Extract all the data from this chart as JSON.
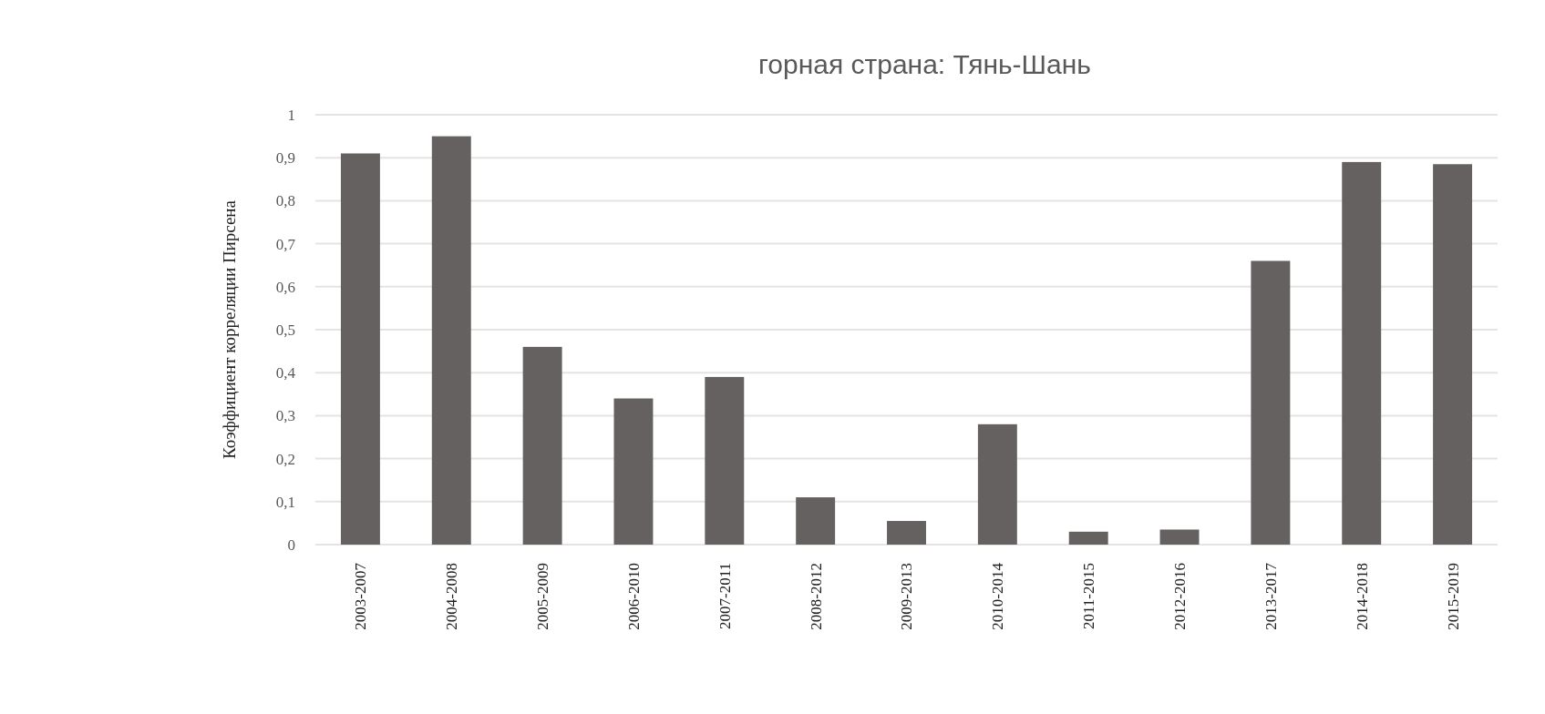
{
  "chart_data": {
    "type": "bar",
    "title": "горная страна: Тянь-Шань",
    "ylabel": "Коэффициент корреляции Пирсена",
    "categories": [
      "2003-2007",
      "2004-2008",
      "2005-2009",
      "2006-2010",
      "2007-2011",
      "2008-2012",
      "2009-2013",
      "2010-2014",
      "2011-2015",
      "2012-2016",
      "2013-2017",
      "2014-2018",
      "2015-2019"
    ],
    "values": [
      0.91,
      0.95,
      0.46,
      0.34,
      0.39,
      0.11,
      0.055,
      0.28,
      0.03,
      0.035,
      0.66,
      0.89,
      0.885
    ],
    "color": "#656161",
    "ylim": [
      0,
      1
    ],
    "yticks": [
      0,
      {
        "value": 0.1,
        "label": "0,1"
      },
      {
        "value": 0.2,
        "label": "0,2"
      },
      {
        "value": 0.3,
        "label": "0,3"
      },
      {
        "value": 0.4,
        "label": "0,4"
      },
      {
        "value": 0.5,
        "label": "0,5"
      },
      {
        "value": 0.6,
        "label": "0,6"
      },
      {
        "value": 0.7,
        "label": "0,7"
      },
      {
        "value": 0.8,
        "label": "0,8"
      },
      {
        "value": 0.9,
        "label": "0,9"
      },
      1
    ],
    "grid": "y"
  }
}
